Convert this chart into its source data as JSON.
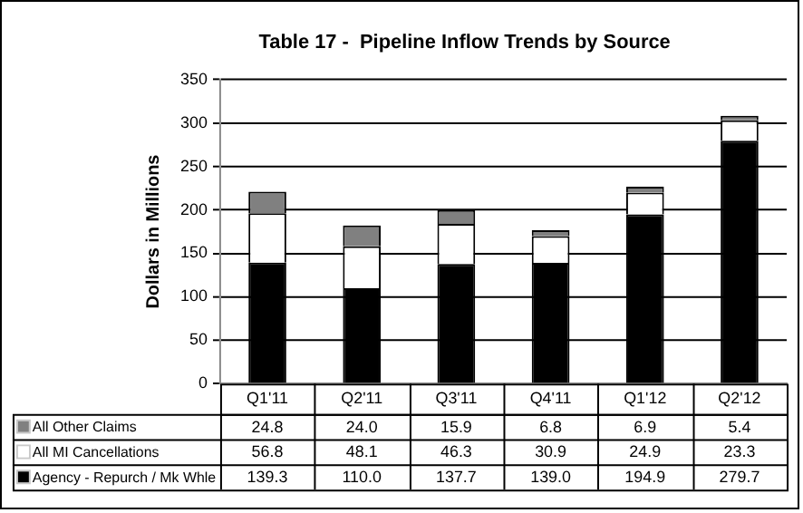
{
  "chart_data": {
    "type": "bar",
    "title": "Table 17 -  Pipeline Inflow Trends by Source",
    "ylabel": "Dollars in Millions",
    "categories": [
      "Q1'11",
      "Q2'11",
      "Q3'11",
      "Q4'11",
      "Q1'12",
      "Q2'12"
    ],
    "stacked": true,
    "ylim": [
      0,
      350
    ],
    "yticks": [
      0,
      50,
      100,
      150,
      200,
      250,
      300,
      350
    ],
    "grid": "y",
    "legend": "bottom",
    "series": [
      {
        "name": "Agency - Repurch / Mk Whle",
        "color": "#000000",
        "values": [
          139.3,
          110.0,
          137.7,
          139.0,
          194.9,
          279.7
        ],
        "value_labels": [
          "139.3",
          "110.0",
          "137.7",
          "139.0",
          "194.9",
          "279.7"
        ]
      },
      {
        "name": "All MI Cancellations",
        "color": "#ffffff",
        "values": [
          56.8,
          48.1,
          46.3,
          30.9,
          24.9,
          23.3
        ],
        "value_labels": [
          "56.8",
          "48.1",
          "46.3",
          "30.9",
          "24.9",
          "23.3"
        ]
      },
      {
        "name": "All Other Claims",
        "color": "#808080",
        "values": [
          24.8,
          24.0,
          15.9,
          6.8,
          6.9,
          5.4
        ],
        "value_labels": [
          "24.8",
          "24.0",
          "15.9",
          "6.8",
          "6.9",
          "5.4"
        ]
      }
    ]
  }
}
